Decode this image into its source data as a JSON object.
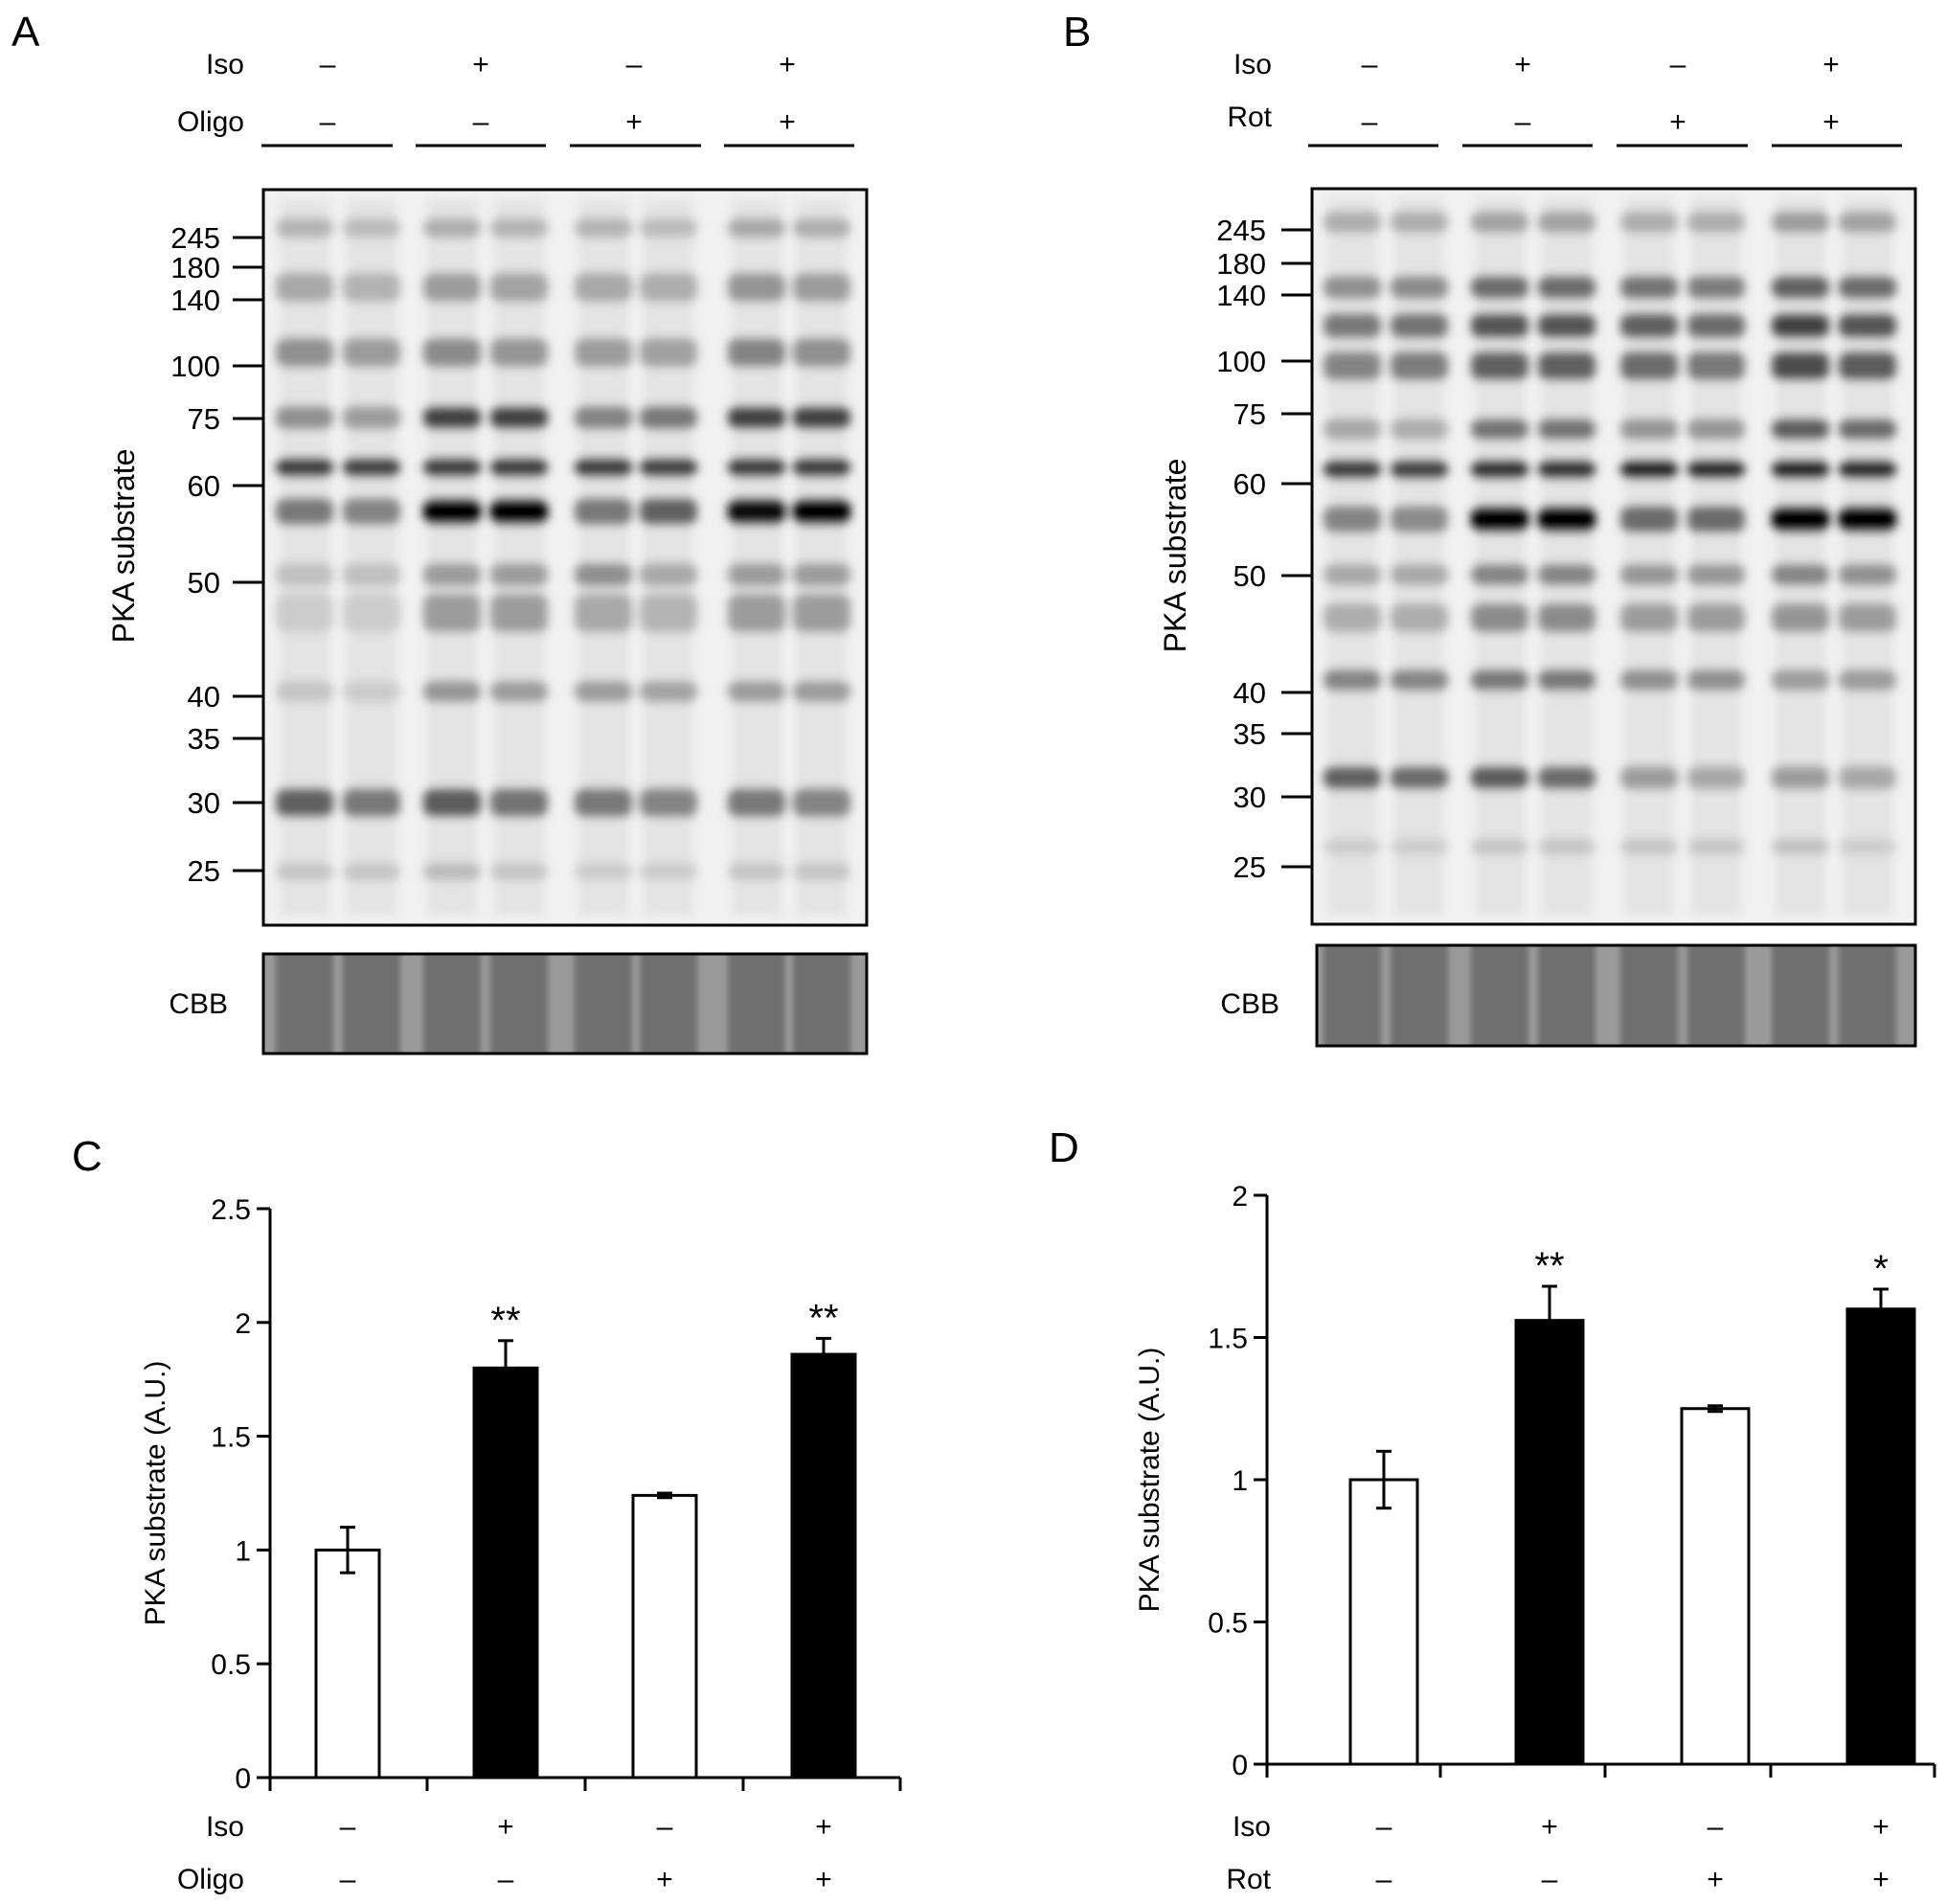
{
  "panel_a": {
    "letter": "A",
    "row_labels": [
      "Iso",
      "Oligo"
    ],
    "iso_signs": [
      "–",
      "+",
      "–",
      "+"
    ],
    "oligo_signs": [
      "–",
      "–",
      "+",
      "+"
    ],
    "ylabel": "PKA substrate",
    "markers": [
      "245",
      "180",
      "140",
      "100",
      "75",
      "60",
      "50",
      "40",
      "35",
      "30",
      "25"
    ],
    "cbb_label": "CBB"
  },
  "panel_b": {
    "letter": "B",
    "row_labels": [
      "Iso",
      "Rot"
    ],
    "iso_signs": [
      "–",
      "+",
      "–",
      "+"
    ],
    "rot_signs": [
      "–",
      "–",
      "+",
      "+"
    ],
    "ylabel": "PKA substrate",
    "markers": [
      "245",
      "180",
      "140",
      "100",
      "75",
      "60",
      "50",
      "40",
      "35",
      "30",
      "25"
    ],
    "cbb_label": "CBB"
  },
  "panel_c": {
    "letter": "C",
    "row_labels": [
      "Iso",
      "Oligo"
    ],
    "iso_signs": [
      "–",
      "+",
      "–",
      "+"
    ],
    "oligo_signs": [
      "–",
      "–",
      "+",
      "+"
    ]
  },
  "panel_d": {
    "letter": "D",
    "row_labels": [
      "Iso",
      "Rot"
    ],
    "iso_signs": [
      "–",
      "+",
      "–",
      "+"
    ],
    "rot_signs": [
      "–",
      "–",
      "+",
      "+"
    ]
  },
  "chart_data": [
    {
      "type": "bar",
      "categories": [
        "Iso– Oligo–",
        "Iso+ Oligo–",
        "Iso– Oligo+",
        "Iso+ Oligo+"
      ],
      "values": [
        1.0,
        1.8,
        1.24,
        1.86
      ],
      "errors": [
        0.1,
        0.12,
        0.01,
        0.07
      ],
      "fills": [
        "#ffffff",
        "#000000",
        "#ffffff",
        "#000000"
      ],
      "significance": [
        "",
        "**",
        "",
        "**"
      ],
      "title": "",
      "xlabel": "",
      "ylabel": "PKA substrate (A.U.)",
      "ylim": [
        0,
        2.5
      ],
      "yticks": [
        0,
        0.5,
        1,
        1.5,
        2,
        2.5
      ],
      "ytick_labels": [
        "0",
        "0.5",
        "1",
        "1.5",
        "2",
        "2.5"
      ]
    },
    {
      "type": "bar",
      "categories": [
        "Iso– Rot–",
        "Iso+ Rot–",
        "Iso– Rot+",
        "Iso+ Rot+"
      ],
      "values": [
        1.0,
        1.56,
        1.25,
        1.6
      ],
      "errors": [
        0.1,
        0.12,
        0.01,
        0.07
      ],
      "fills": [
        "#ffffff",
        "#000000",
        "#ffffff",
        "#000000"
      ],
      "significance": [
        "",
        "**",
        "",
        "*"
      ],
      "title": "",
      "xlabel": "",
      "ylabel": "PKA substrate (A.U.)",
      "ylim": [
        0,
        2
      ],
      "yticks": [
        0,
        0.5,
        1,
        1.5,
        2
      ],
      "ytick_labels": [
        "0",
        "0.5",
        "1",
        "1.5",
        "2"
      ]
    }
  ]
}
